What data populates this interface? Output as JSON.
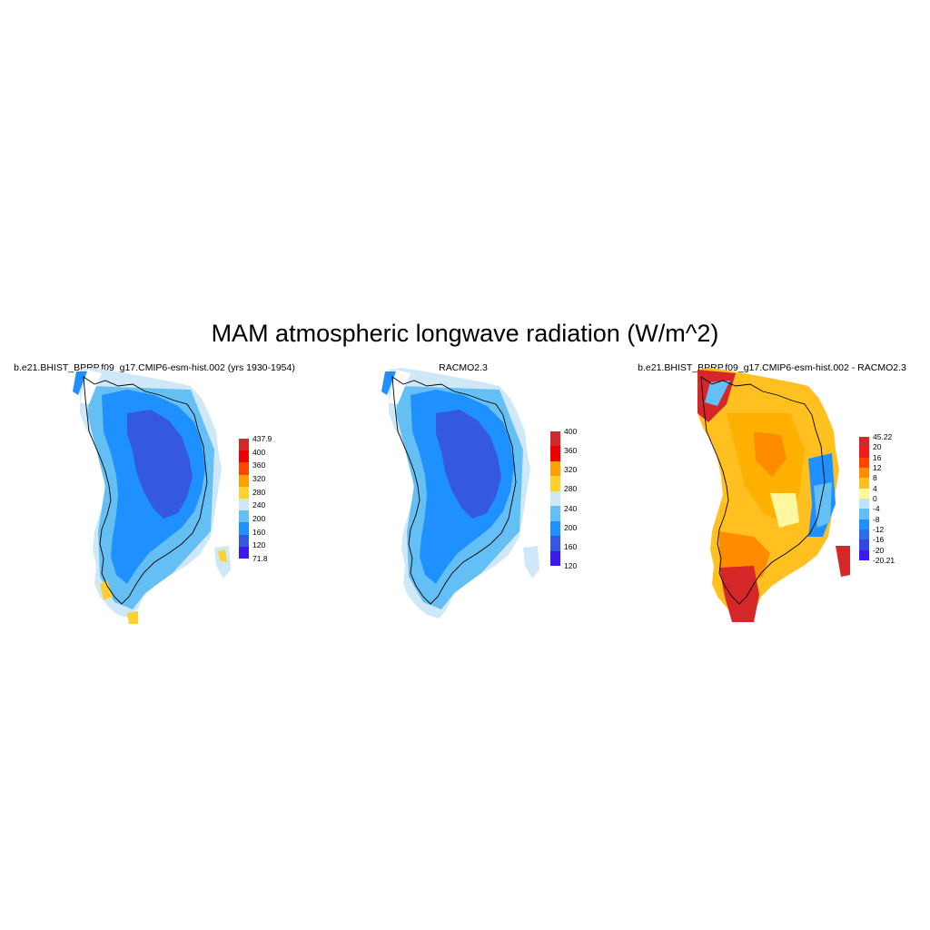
{
  "main_title": "MAM atmospheric longwave radiation (W/m^2)",
  "panels": [
    {
      "title": "b.e21.BHIST_BPRP.f09_g17.CMIP6-esm-hist.002 (yrs 1930-1954)",
      "field": "absolute",
      "legend_labels": [
        "437.9",
        "400",
        "360",
        "320",
        "280",
        "240",
        "200",
        "160",
        "120",
        "71.8"
      ],
      "legend_colors": [
        "#d62728",
        "#ee0000",
        "#ff4500",
        "#ff9f00",
        "#ffd030",
        "#cfe8f8",
        "#64c0f4",
        "#1e90ff",
        "#3558e0",
        "#3a18ee"
      ]
    },
    {
      "title": "RACMO2.3",
      "field": "absolute",
      "legend_labels": [
        "400",
        "360",
        "320",
        "280",
        "240",
        "200",
        "160",
        "120"
      ],
      "legend_colors": [
        "#d62728",
        "#ee0000",
        "#ff9f00",
        "#ffd030",
        "#cfe8f8",
        "#64c0f4",
        "#1e90ff",
        "#3558e0",
        "#3a18ee"
      ]
    },
    {
      "title": "b.e21.BHIST_BPRP.f09_g17.CMIP6-esm-hist.002 - RACMO2.3",
      "field": "difference",
      "legend_labels": [
        "45.22",
        "20",
        "16",
        "12",
        "8",
        "4",
        "0",
        "-4",
        "-8",
        "-12",
        "-16",
        "-20",
        "-20.21"
      ],
      "legend_colors": [
        "#d62728",
        "#ee1c1c",
        "#ff4500",
        "#ff8c00",
        "#ffc020",
        "#fff8a0",
        "#bfe4ff",
        "#64c0f4",
        "#1e90ff",
        "#2a6ee8",
        "#3448e0",
        "#3a18ee"
      ]
    }
  ],
  "map_colors": {
    "ocean_light": "#cfe8f8",
    "coast_mid": "#64c0f4",
    "coast_dark": "#1e90ff",
    "interior": "#3558e0",
    "warm_yellow": "#ffd030",
    "diff_yellow": "#ffc020",
    "diff_pale": "#fff8a0",
    "diff_orange": "#ff8c00",
    "diff_red": "#d62728",
    "outline": "#000000"
  }
}
